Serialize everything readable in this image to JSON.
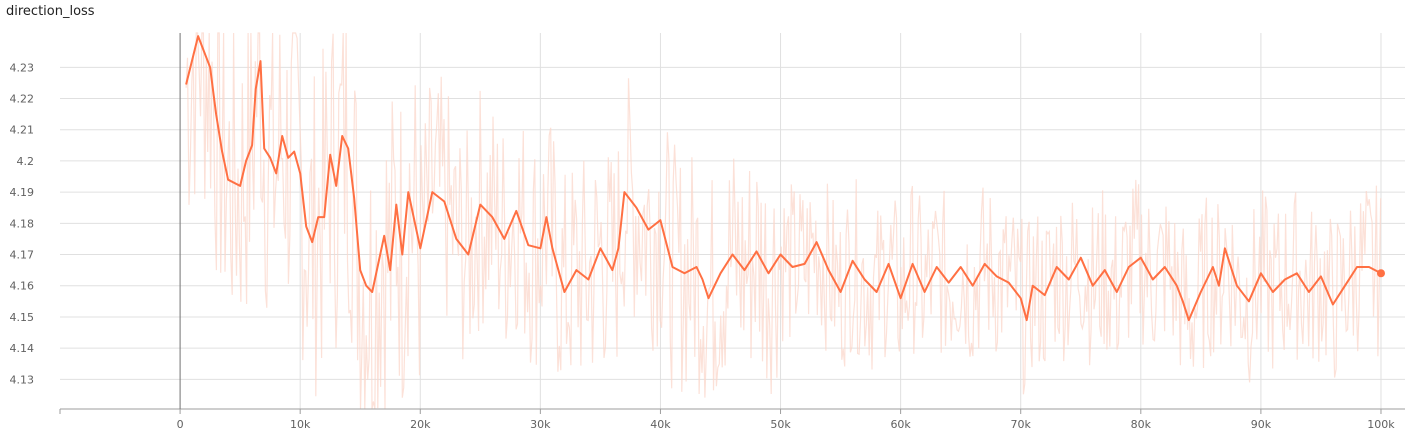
{
  "chart_data": {
    "type": "line",
    "title": "direction_loss",
    "xlabel": "",
    "ylabel": "",
    "xlim": [
      -10000,
      102000
    ],
    "ylim": [
      4.1205,
      4.241
    ],
    "x_ticks": [
      0,
      10000,
      20000,
      30000,
      40000,
      50000,
      60000,
      70000,
      80000,
      90000,
      100000
    ],
    "x_tick_labels": [
      "0",
      "10k",
      "20k",
      "30k",
      "40k",
      "50k",
      "60k",
      "70k",
      "80k",
      "90k",
      "100k"
    ],
    "y_ticks": [
      4.13,
      4.14,
      4.15,
      4.16,
      4.17,
      4.18,
      4.19,
      4.2,
      4.21,
      4.22,
      4.23
    ],
    "y_tick_labels": [
      "4.13",
      "4.14",
      "4.15",
      "4.16",
      "4.17",
      "4.18",
      "4.19",
      "4.2",
      "4.21",
      "4.22",
      "4.23"
    ],
    "grid": true,
    "colors": {
      "smoothed": "#ff7043",
      "raw": "#fbd7cb",
      "grid": "#e0e0e0",
      "axis": "#9e9e9e"
    },
    "series": [
      {
        "role": "smoothed",
        "x": [
          500,
          1500,
          2500,
          3000,
          3500,
          4000,
          5000,
          5500,
          6000,
          6300,
          6700,
          7000,
          7500,
          8000,
          8500,
          9000,
          9500,
          10000,
          10500,
          11000,
          11500,
          12000,
          12500,
          13000,
          13500,
          14000,
          14500,
          15000,
          15500,
          16000,
          17000,
          17500,
          18000,
          18500,
          19000,
          20000,
          21000,
          22000,
          23000,
          24000,
          25000,
          26000,
          27000,
          28000,
          29000,
          30000,
          30500,
          31000,
          32000,
          33000,
          34000,
          35000,
          36000,
          36500,
          37000,
          38000,
          39000,
          40000,
          41000,
          42000,
          43000,
          43500,
          44000,
          45000,
          46000,
          47000,
          48000,
          49000,
          50000,
          51000,
          52000,
          53000,
          54000,
          55000,
          56000,
          57000,
          58000,
          59000,
          60000,
          61000,
          62000,
          63000,
          64000,
          65000,
          66000,
          67000,
          68000,
          69000,
          70000,
          70500,
          71000,
          72000,
          73000,
          74000,
          75000,
          76000,
          77000,
          78000,
          79000,
          80000,
          81000,
          82000,
          83000,
          83500,
          84000,
          85000,
          86000,
          86500,
          87000,
          88000,
          89000,
          90000,
          91000,
          92000,
          93000,
          94000,
          95000,
          96000,
          97000,
          98000,
          99000,
          100000
        ],
        "values": [
          4.2245,
          4.24,
          4.23,
          4.215,
          4.203,
          4.194,
          4.192,
          4.2,
          4.205,
          4.223,
          4.232,
          4.204,
          4.201,
          4.196,
          4.208,
          4.201,
          4.203,
          4.196,
          4.179,
          4.174,
          4.182,
          4.182,
          4.202,
          4.192,
          4.208,
          4.204,
          4.188,
          4.165,
          4.16,
          4.158,
          4.176,
          4.165,
          4.186,
          4.17,
          4.19,
          4.172,
          4.19,
          4.187,
          4.175,
          4.17,
          4.186,
          4.182,
          4.175,
          4.184,
          4.173,
          4.172,
          4.182,
          4.172,
          4.158,
          4.165,
          4.162,
          4.172,
          4.165,
          4.172,
          4.19,
          4.185,
          4.178,
          4.181,
          4.166,
          4.164,
          4.166,
          4.162,
          4.156,
          4.164,
          4.17,
          4.165,
          4.171,
          4.164,
          4.17,
          4.166,
          4.167,
          4.174,
          4.165,
          4.158,
          4.168,
          4.162,
          4.158,
          4.167,
          4.156,
          4.167,
          4.158,
          4.166,
          4.161,
          4.166,
          4.16,
          4.167,
          4.163,
          4.161,
          4.156,
          4.149,
          4.16,
          4.157,
          4.166,
          4.162,
          4.169,
          4.16,
          4.165,
          4.158,
          4.166,
          4.169,
          4.162,
          4.166,
          4.16,
          4.155,
          4.149,
          4.158,
          4.166,
          4.16,
          4.172,
          4.16,
          4.155,
          4.164,
          4.158,
          4.162,
          4.164,
          4.158,
          4.163,
          4.154,
          4.16,
          4.166,
          4.166,
          4.164
        ]
      }
    ]
  }
}
